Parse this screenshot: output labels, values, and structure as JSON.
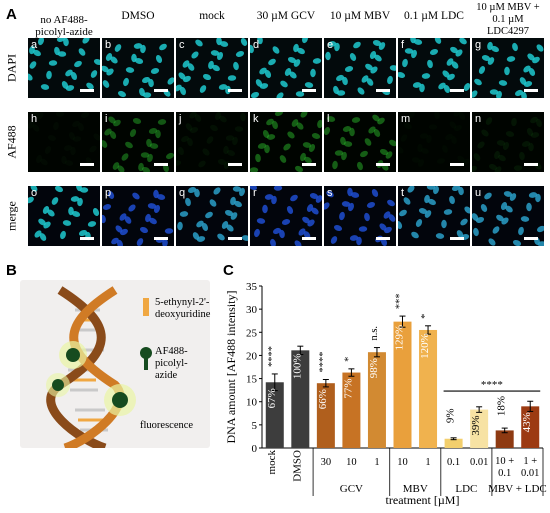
{
  "panel_letters": {
    "A": "A",
    "B": "B",
    "C": "C"
  },
  "panel_a": {
    "columns": [
      "no AF488-picolyl-azide",
      "DMSO",
      "mock",
      "30 µM GCV",
      "10 µM MBV",
      "0.1 µM LDC",
      "10 µM MBV + 0.1 µM LDC4297"
    ],
    "rows": [
      {
        "label": "DAPI",
        "tiles": [
          "a",
          "b",
          "c",
          "d",
          "e",
          "f",
          "g"
        ],
        "color": "#1fc9cf"
      },
      {
        "label": "AF488",
        "tiles": [
          "h",
          "i",
          "j",
          "k",
          "l",
          "m",
          "n"
        ],
        "color": "#29b52a"
      },
      {
        "label": "merge",
        "tiles": [
          "o",
          "p",
          "q",
          "r",
          "s",
          "t",
          "u"
        ],
        "color": "#2b6cd8"
      }
    ]
  },
  "panel_b": {
    "label_edu": "5-ethynyl-2'-deoxyuridine",
    "label_azide": "AF488-picolyl-azide",
    "label_fluorescence": "fluorescence",
    "colors": {
      "edu": "#f0a741",
      "azide": "#164b1f",
      "helix_brown": "#8a4b1a",
      "helix_orange": "#d07b25"
    }
  },
  "chart_data": {
    "type": "bar",
    "ylabel": "DNA amount [AF488 intensity]",
    "xlabel": "treatment [µM]",
    "ylim": [
      0,
      35
    ],
    "yticks": [
      0,
      5,
      10,
      15,
      20,
      25,
      30,
      35
    ],
    "bars": [
      {
        "tick": "mock",
        "group": "",
        "value": 14.2,
        "err": 1.8,
        "pct": "67%",
        "sig": "****",
        "color": "#3d3d3d"
      },
      {
        "tick": "DMSO",
        "group": "",
        "value": 21.1,
        "err": 0.9,
        "pct": "100%",
        "sig": "",
        "color": "#3d3d3d"
      },
      {
        "tick": "30",
        "group": "GCV",
        "value": 14.0,
        "err": 0.8,
        "pct": "66%",
        "sig": "****",
        "color": "#b05f1d"
      },
      {
        "tick": "10",
        "group": "GCV",
        "value": 16.3,
        "err": 0.8,
        "pct": "77%",
        "sig": "*",
        "color": "#c77324"
      },
      {
        "tick": "1",
        "group": "GCV",
        "value": 20.7,
        "err": 1.0,
        "pct": "98%",
        "sig": "n.s.",
        "color": "#d28a32"
      },
      {
        "tick": "10",
        "group": "MBV",
        "value": 27.3,
        "err": 1.2,
        "pct": "129%",
        "sig": "***",
        "color": "#e9a03c"
      },
      {
        "tick": "1",
        "group": "MBV",
        "value": 25.5,
        "err": 0.9,
        "pct": "120%",
        "sig": "*",
        "color": "#f0b24e"
      },
      {
        "tick": "0.1",
        "group": "LDC",
        "value": 2.0,
        "err": 0.2,
        "pct": "9%",
        "sig": "",
        "color": "#f3cf6d"
      },
      {
        "tick": "0.01",
        "group": "LDC",
        "value": 8.3,
        "err": 0.6,
        "pct": "39%",
        "sig": "",
        "color": "#f7e2a3"
      },
      {
        "tick": "10 + 0.1",
        "group": "MBV + LDC",
        "value": 3.8,
        "err": 0.5,
        "pct": "18%",
        "sig": "",
        "color": "#8e3a12"
      },
      {
        "tick": "1 + 0.01",
        "group": "MBV + LDC",
        "value": 9.0,
        "err": 1.1,
        "pct": "43%",
        "sig": "",
        "color": "#9c3a12"
      }
    ],
    "groups": [
      "GCV",
      "MBV",
      "LDC",
      "MBV + LDC"
    ],
    "bracket_label": "****"
  }
}
